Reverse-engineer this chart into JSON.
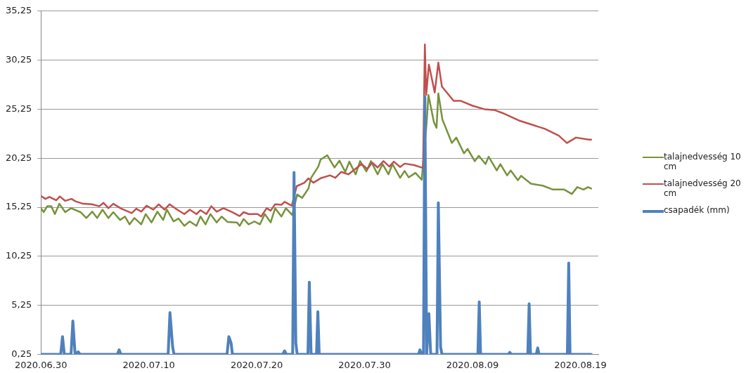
{
  "chart_data": {
    "type": "line",
    "xlim": [
      "2020-06-30",
      "2020-08-20T16:00"
    ],
    "xticks": [
      {
        "value": "2020-06-30",
        "label": "2020.06.30"
      },
      {
        "value": "2020-07-10",
        "label": "2020.07.10"
      },
      {
        "value": "2020-07-20",
        "label": "2020.07.20"
      },
      {
        "value": "2020-07-30",
        "label": "2020.07.30"
      },
      {
        "value": "2020-08-09",
        "label": "2020.08.09"
      },
      {
        "value": "2020-08-19",
        "label": "2020.08.19"
      }
    ],
    "ylim": [
      0.25,
      35.25
    ],
    "yticks": [
      {
        "value": 0.25,
        "label": "0,25"
      },
      {
        "value": 5.25,
        "label": "5,25"
      },
      {
        "value": 10.25,
        "label": "10,25"
      },
      {
        "value": 15.25,
        "label": "15,25"
      },
      {
        "value": 20.25,
        "label": "20,25"
      },
      {
        "value": 25.25,
        "label": "25,25"
      },
      {
        "value": 30.25,
        "label": "30,25"
      },
      {
        "value": 35.25,
        "label": "35,25"
      }
    ],
    "grid": "y",
    "legend": "right",
    "marker": "none",
    "line_style": "solid",
    "series": [
      {
        "name": "talajnedvesség 10 cm",
        "color": "#77933c",
        "x": [
          "2020-06-30T00:00",
          "2020-06-30T06:00",
          "2020-06-30T14:00",
          "2020-06-30T23:00",
          "2020-07-01T07:00",
          "2020-07-01T17:00",
          "2020-07-02T06:00",
          "2020-07-02T19:00",
          "2020-07-03T16:00",
          "2020-07-04T05:00",
          "2020-07-04T18:00",
          "2020-07-05T05:00",
          "2020-07-05T17:00",
          "2020-07-06T06:00",
          "2020-07-06T17:00",
          "2020-07-07T08:00",
          "2020-07-07T19:00",
          "2020-07-08T05:00",
          "2020-07-08T16:00",
          "2020-07-09T07:00",
          "2020-07-09T17:00",
          "2020-07-10T06:00",
          "2020-07-10T19:00",
          "2020-07-11T08:00",
          "2020-07-11T16:00",
          "2020-07-12T07:00",
          "2020-07-12T18:00",
          "2020-07-13T07:00",
          "2020-07-13T19:00",
          "2020-07-14T10:00",
          "2020-07-14T19:00",
          "2020-07-15T06:00",
          "2020-07-15T17:00",
          "2020-07-16T07:00",
          "2020-07-16T18:00",
          "2020-07-17T07:00",
          "2020-07-18T04:00",
          "2020-07-18T10:00",
          "2020-07-18T19:00",
          "2020-07-19T06:00",
          "2020-07-19T19:00",
          "2020-07-20T07:00",
          "2020-07-20T18:00",
          "2020-07-21T07:00",
          "2020-07-21T17:00",
          "2020-07-22T07:00",
          "2020-07-22T17:00",
          "2020-07-23T07:00",
          "2020-07-23T18:00",
          "2020-07-24T05:00",
          "2020-07-24T19:00",
          "2020-07-25T01:00",
          "2020-07-25T17:00",
          "2020-07-25T22:00",
          "2020-07-26T13:00",
          "2020-07-27T05:00",
          "2020-07-27T16:00",
          "2020-07-28T05:00",
          "2020-07-28T14:00",
          "2020-07-29T04:00",
          "2020-07-29T14:00",
          "2020-07-30T04:00",
          "2020-07-30T14:00",
          "2020-07-31T05:00",
          "2020-07-31T16:00",
          "2020-08-01T05:00",
          "2020-08-01T14:00",
          "2020-08-02T07:00",
          "2020-08-02T17:00",
          "2020-08-03T02:00",
          "2020-08-03T17:00",
          "2020-08-04T07:00",
          "2020-08-04T18:00",
          "2020-08-04T22:00",
          "2020-08-05T10:00",
          "2020-08-05T16:00",
          "2020-08-05T20:00",
          "2020-08-06T05:00",
          "2020-08-07T02:00",
          "2020-08-07T12:00",
          "2020-08-08T05:00",
          "2020-08-08T13:00",
          "2020-08-09T05:00",
          "2020-08-09T14:00",
          "2020-08-10T05:00",
          "2020-08-10T12:00",
          "2020-08-11T06:00",
          "2020-08-11T14:00",
          "2020-08-12T05:00",
          "2020-08-12T13:00",
          "2020-08-13T05:00",
          "2020-08-13T12:00",
          "2020-08-14T10:00",
          "2020-08-15T12:00",
          "2020-08-16T11:00",
          "2020-08-17T12:00",
          "2020-08-18T05:00",
          "2020-08-18T17:00",
          "2020-08-19T07:00",
          "2020-08-19T17:00",
          "2020-08-20T00:00"
        ],
        "values": [
          15.15,
          14.75,
          15.35,
          15.35,
          14.55,
          15.6,
          14.75,
          15.15,
          14.75,
          14.15,
          14.8,
          14.15,
          15.0,
          14.15,
          14.75,
          13.95,
          14.3,
          13.5,
          14.15,
          13.5,
          14.55,
          13.7,
          14.8,
          13.95,
          15.0,
          13.8,
          14.1,
          13.35,
          13.8,
          13.35,
          14.3,
          13.5,
          14.55,
          13.7,
          14.3,
          13.75,
          13.7,
          13.35,
          14.05,
          13.5,
          13.8,
          13.5,
          14.55,
          13.7,
          15.15,
          14.3,
          15.15,
          14.45,
          16.55,
          16.2,
          17.15,
          18.25,
          19.4,
          20.1,
          20.55,
          19.3,
          20.0,
          18.85,
          19.9,
          18.6,
          19.95,
          18.9,
          19.95,
          18.6,
          19.65,
          18.6,
          19.65,
          18.25,
          18.95,
          18.3,
          18.75,
          18.05,
          23.85,
          26.7,
          23.95,
          23.35,
          26.85,
          24.2,
          21.8,
          22.35,
          20.75,
          21.2,
          19.95,
          20.5,
          19.65,
          20.4,
          19.0,
          19.65,
          18.5,
          19.0,
          18.0,
          18.45,
          17.65,
          17.45,
          17.05,
          17.05,
          16.6,
          17.3,
          17.05,
          17.3,
          17.15
        ]
      },
      {
        "name": "talajnedvesség 20 cm",
        "color": "#c0504d",
        "x": [
          "2020-06-30T00:00",
          "2020-06-30T10:00",
          "2020-06-30T19:00",
          "2020-07-01T10:00",
          "2020-07-01T18:00",
          "2020-07-02T06:00",
          "2020-07-02T20:00",
          "2020-07-03T05:00",
          "2020-07-03T22:00",
          "2020-07-04T17:00",
          "2020-07-05T10:00",
          "2020-07-05T19:00",
          "2020-07-06T06:00",
          "2020-07-06T17:00",
          "2020-07-07T11:00",
          "2020-07-08T10:00",
          "2020-07-08T20:00",
          "2020-07-09T07:00",
          "2020-07-09T19:00",
          "2020-07-10T10:00",
          "2020-07-10T22:00",
          "2020-07-11T11:00",
          "2020-07-11T22:00",
          "2020-07-12T12:00",
          "2020-07-13T07:00",
          "2020-07-13T19:00",
          "2020-07-14T10:00",
          "2020-07-14T19:00",
          "2020-07-15T08:00",
          "2020-07-15T19:00",
          "2020-07-16T07:00",
          "2020-07-16T22:00",
          "2020-07-17T17:00",
          "2020-07-18T10:00",
          "2020-07-18T19:00",
          "2020-07-19T06:00",
          "2020-07-20T02:00",
          "2020-07-20T10:00",
          "2020-07-20T22:00",
          "2020-07-21T07:00",
          "2020-07-21T17:00",
          "2020-07-22T07:00",
          "2020-07-22T14:00",
          "2020-07-23T06:00",
          "2020-07-23T17:00",
          "2020-07-24T10:00",
          "2020-07-24T19:00",
          "2020-07-25T06:00",
          "2020-07-25T22:00",
          "2020-07-26T19:00",
          "2020-07-27T07:00",
          "2020-07-27T20:00",
          "2020-07-28T12:00",
          "2020-07-29T17:00",
          "2020-07-30T06:00",
          "2020-07-30T17:00",
          "2020-07-31T05:00",
          "2020-07-31T18:00",
          "2020-08-01T07:00",
          "2020-08-01T17:00",
          "2020-08-02T07:00",
          "2020-08-02T17:00",
          "2020-08-03T14:00",
          "2020-08-04T10:00",
          "2020-08-04T14:00",
          "2020-08-04T17:00",
          "2020-08-04T23:00",
          "2020-08-05T12:00",
          "2020-08-05T20:00",
          "2020-08-06T04:00",
          "2020-08-07T06:00",
          "2020-08-07T22:00",
          "2020-08-09T00:00",
          "2020-08-10T02:00",
          "2020-08-11T02:00",
          "2020-08-11T19:00",
          "2020-08-13T07:00",
          "2020-08-14T10:00",
          "2020-08-15T17:00",
          "2020-08-17T00:00",
          "2020-08-17T18:00",
          "2020-08-18T14:00",
          "2020-08-19T19:00",
          "2020-08-20T00:00"
        ],
        "values": [
          16.4,
          16.1,
          16.3,
          15.95,
          16.35,
          15.9,
          16.1,
          15.85,
          15.6,
          15.55,
          15.35,
          15.7,
          15.15,
          15.6,
          15.1,
          14.65,
          15.1,
          14.8,
          15.4,
          15.0,
          15.55,
          15.0,
          15.55,
          15.1,
          14.55,
          15.0,
          14.55,
          14.95,
          14.55,
          15.35,
          14.8,
          15.15,
          14.75,
          14.35,
          14.75,
          14.55,
          14.55,
          14.3,
          15.15,
          14.9,
          15.55,
          15.5,
          15.8,
          15.4,
          17.4,
          17.75,
          18.2,
          17.75,
          18.2,
          18.5,
          18.25,
          18.85,
          18.6,
          19.65,
          19.15,
          19.8,
          19.3,
          19.95,
          19.4,
          19.9,
          19.35,
          19.7,
          19.55,
          19.25,
          31.85,
          26.7,
          29.8,
          26.95,
          30.0,
          27.55,
          26.1,
          26.1,
          25.6,
          25.25,
          25.15,
          24.85,
          24.1,
          23.7,
          23.25,
          22.55,
          21.8,
          22.35,
          22.15,
          22.15
        ]
      },
      {
        "name": "csapadék (mm)",
        "color": "#4f81bd",
        "x": [
          "2020-06-30T00:00",
          "2020-07-01T20:00",
          "2020-07-02T00:00",
          "2020-07-02T04:00",
          "2020-07-02T19:00",
          "2020-07-02T23:00",
          "2020-07-03T04:00",
          "2020-07-03T11:00",
          "2020-07-03T15:00",
          "2020-07-07T02:00",
          "2020-07-07T06:00",
          "2020-07-07T10:00",
          "2020-07-11T19:00",
          "2020-07-11T23:00",
          "2020-07-12T05:00",
          "2020-07-12T08:00",
          "2020-07-17T06:00",
          "2020-07-17T10:00",
          "2020-07-17T15:00",
          "2020-07-17T18:00",
          "2020-07-22T10:00",
          "2020-07-22T14:00",
          "2020-07-22T18:00",
          "2020-07-23T08:00",
          "2020-07-23T11:00",
          "2020-07-23T15:00",
          "2020-07-23T18:00",
          "2020-07-24T18:00",
          "2020-07-24T21:00",
          "2020-07-25T01:00",
          "2020-07-25T13:00",
          "2020-07-25T16:00",
          "2020-07-25T19:00",
          "2020-08-04T00:00",
          "2020-08-04T03:00",
          "2020-08-04T07:00",
          "2020-08-04T11:00",
          "2020-08-04T14:00",
          "2020-08-04T18:00",
          "2020-08-04T23:00",
          "2020-08-05T03:00",
          "2020-08-05T17:00",
          "2020-08-05T20:00",
          "2020-08-06T01:00",
          "2020-08-06T04:00",
          "2020-08-09T12:00",
          "2020-08-09T15:00",
          "2020-08-09T18:00",
          "2020-08-12T08:00",
          "2020-08-12T11:00",
          "2020-08-12T14:00",
          "2020-08-14T03:00",
          "2020-08-14T06:00",
          "2020-08-14T09:00",
          "2020-08-14T22:00",
          "2020-08-15T01:00",
          "2020-08-15T04:00",
          "2020-08-17T19:00",
          "2020-08-17T22:00",
          "2020-08-18T01:00",
          "2020-08-20T00:00"
        ],
        "values": [
          0.25,
          0.25,
          2.05,
          0.25,
          0.25,
          3.65,
          0.25,
          0.5,
          0.25,
          0.25,
          0.7,
          0.25,
          0.25,
          4.5,
          1.0,
          0.25,
          0.25,
          2.05,
          1.4,
          0.25,
          0.25,
          0.6,
          0.25,
          0.25,
          18.8,
          1.4,
          0.25,
          0.25,
          7.6,
          0.25,
          0.25,
          4.6,
          0.25,
          0.25,
          0.7,
          0.25,
          0.25,
          26.5,
          0.25,
          4.4,
          0.25,
          0.25,
          15.7,
          1.0,
          0.25,
          0.25,
          5.6,
          0.25,
          0.25,
          0.45,
          0.25,
          0.25,
          5.4,
          0.25,
          0.25,
          0.9,
          0.25,
          0.25,
          9.55,
          0.25,
          0.25
        ]
      }
    ]
  }
}
